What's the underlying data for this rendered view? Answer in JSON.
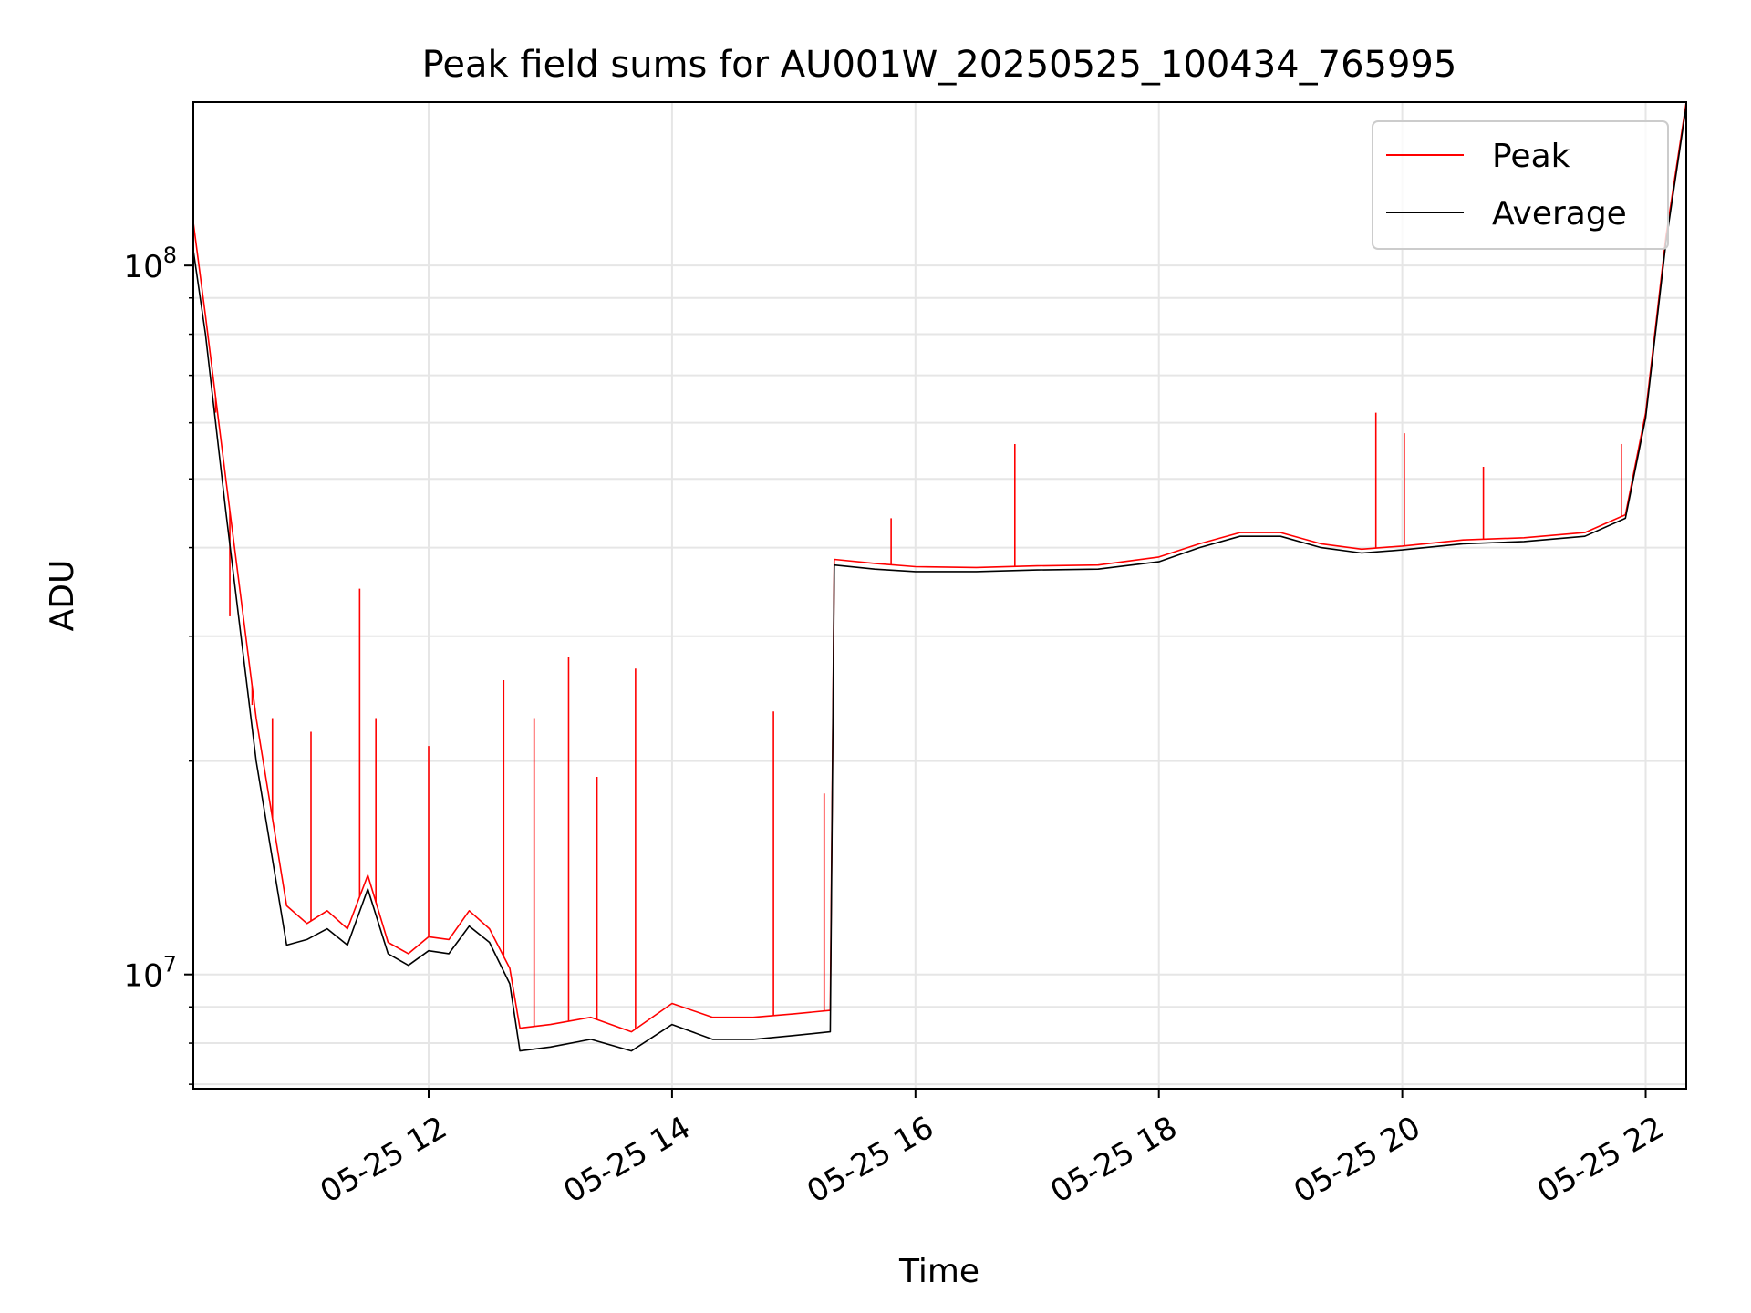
{
  "chart_data": {
    "type": "line",
    "title": "Peak field sums for AU001W_20250525_100434_765995",
    "xlabel": "Time",
    "ylabel": "ADU",
    "x_scale": "time",
    "y_scale": "log",
    "xlim": [
      "2025-05-25 10:04",
      "2025-05-25 22:20"
    ],
    "ylim": [
      6900000,
      170000000
    ],
    "x_ticks": [
      {
        "value": "2025-05-25 12:00",
        "label": "05-25 12"
      },
      {
        "value": "2025-05-25 14:00",
        "label": "05-25 14"
      },
      {
        "value": "2025-05-25 16:00",
        "label": "05-25 16"
      },
      {
        "value": "2025-05-25 18:00",
        "label": "05-25 18"
      },
      {
        "value": "2025-05-25 20:00",
        "label": "05-25 20"
      },
      {
        "value": "2025-05-25 22:00",
        "label": "05-25 22"
      }
    ],
    "y_ticks": [
      {
        "value": 10000000,
        "base": "10",
        "exp": "7"
      },
      {
        "value": 100000000,
        "base": "10",
        "exp": "8"
      }
    ],
    "grid": true,
    "legend_position": "top-right",
    "series": [
      {
        "name": "Peak",
        "color": "#ff0000",
        "x": [
          "2025-05-25 10:04",
          "2025-05-25 10:10",
          "2025-05-25 10:20",
          "2025-05-25 10:35",
          "2025-05-25 10:50",
          "2025-05-25 11:00",
          "2025-05-25 11:10",
          "2025-05-25 11:20",
          "2025-05-25 11:30",
          "2025-05-25 11:40",
          "2025-05-25 11:50",
          "2025-05-25 12:00",
          "2025-05-25 12:10",
          "2025-05-25 12:20",
          "2025-05-25 12:30",
          "2025-05-25 12:40",
          "2025-05-25 12:45",
          "2025-05-25 13:00",
          "2025-05-25 13:20",
          "2025-05-25 13:40",
          "2025-05-25 14:00",
          "2025-05-25 14:20",
          "2025-05-25 14:40",
          "2025-05-25 15:00",
          "2025-05-25 15:18",
          "2025-05-25 15:20",
          "2025-05-25 15:40",
          "2025-05-25 16:00",
          "2025-05-25 16:30",
          "2025-05-25 17:00",
          "2025-05-25 17:30",
          "2025-05-25 18:00",
          "2025-05-25 18:20",
          "2025-05-25 18:40",
          "2025-05-25 19:00",
          "2025-05-25 19:20",
          "2025-05-25 19:40",
          "2025-05-25 20:00",
          "2025-05-25 20:30",
          "2025-05-25 21:00",
          "2025-05-25 21:30",
          "2025-05-25 21:50",
          "2025-05-25 22:00",
          "2025-05-25 22:10",
          "2025-05-25 22:20"
        ],
        "y": [
          115000000,
          85000000,
          50000000,
          23000000,
          12500000,
          11800000,
          12300000,
          11600000,
          13800000,
          11100000,
          10700000,
          11300000,
          11200000,
          12300000,
          11600000,
          10200000,
          8400000,
          8500000,
          8700000,
          8300000,
          9100000,
          8700000,
          8700000,
          8800000,
          8900000,
          38500000,
          38000000,
          37600000,
          37500000,
          37700000,
          37800000,
          38800000,
          40500000,
          42000000,
          42000000,
          40500000,
          39800000,
          40200000,
          41000000,
          41300000,
          42000000,
          44500000,
          62000000,
          110000000,
          170000000
        ],
        "spikes": [
          {
            "x": "2025-05-25 10:15",
            "y": 62000000
          },
          {
            "x": "2025-05-25 10:22",
            "y": 32000000
          },
          {
            "x": "2025-05-25 10:33",
            "y": 24000000
          },
          {
            "x": "2025-05-25 10:43",
            "y": 23000000
          },
          {
            "x": "2025-05-25 11:02",
            "y": 22000000
          },
          {
            "x": "2025-05-25 11:26",
            "y": 35000000
          },
          {
            "x": "2025-05-25 11:34",
            "y": 23000000
          },
          {
            "x": "2025-05-25 12:00",
            "y": 21000000
          },
          {
            "x": "2025-05-25 12:37",
            "y": 26000000
          },
          {
            "x": "2025-05-25 12:52",
            "y": 23000000
          },
          {
            "x": "2025-05-25 13:09",
            "y": 28000000
          },
          {
            "x": "2025-05-25 13:23",
            "y": 19000000
          },
          {
            "x": "2025-05-25 13:42",
            "y": 27000000
          },
          {
            "x": "2025-05-25 14:50",
            "y": 23500000
          },
          {
            "x": "2025-05-25 15:15",
            "y": 18000000
          },
          {
            "x": "2025-05-25 15:48",
            "y": 44000000
          },
          {
            "x": "2025-05-25 16:49",
            "y": 56000000
          },
          {
            "x": "2025-05-25 19:47",
            "y": 62000000
          },
          {
            "x": "2025-05-25 20:01",
            "y": 58000000
          },
          {
            "x": "2025-05-25 20:40",
            "y": 52000000
          },
          {
            "x": "2025-05-25 21:48",
            "y": 56000000
          }
        ]
      },
      {
        "name": "Average",
        "color": "#000000",
        "x": [
          "2025-05-25 10:04",
          "2025-05-25 10:10",
          "2025-05-25 10:20",
          "2025-05-25 10:35",
          "2025-05-25 10:50",
          "2025-05-25 11:00",
          "2025-05-25 11:10",
          "2025-05-25 11:20",
          "2025-05-25 11:30",
          "2025-05-25 11:40",
          "2025-05-25 11:50",
          "2025-05-25 12:00",
          "2025-05-25 12:10",
          "2025-05-25 12:20",
          "2025-05-25 12:30",
          "2025-05-25 12:40",
          "2025-05-25 12:45",
          "2025-05-25 13:00",
          "2025-05-25 13:20",
          "2025-05-25 13:40",
          "2025-05-25 14:00",
          "2025-05-25 14:20",
          "2025-05-25 14:40",
          "2025-05-25 15:00",
          "2025-05-25 15:18",
          "2025-05-25 15:20",
          "2025-05-25 15:40",
          "2025-05-25 16:00",
          "2025-05-25 16:30",
          "2025-05-25 17:00",
          "2025-05-25 17:30",
          "2025-05-25 18:00",
          "2025-05-25 18:20",
          "2025-05-25 18:40",
          "2025-05-25 19:00",
          "2025-05-25 19:20",
          "2025-05-25 19:40",
          "2025-05-25 20:00",
          "2025-05-25 20:30",
          "2025-05-25 21:00",
          "2025-05-25 21:30",
          "2025-05-25 21:50",
          "2025-05-25 22:00",
          "2025-05-25 22:10",
          "2025-05-25 22:20"
        ],
        "y": [
          105000000,
          80000000,
          45000000,
          20000000,
          11000000,
          11200000,
          11600000,
          11000000,
          13200000,
          10700000,
          10300000,
          10800000,
          10700000,
          11700000,
          11100000,
          9700000,
          7800000,
          7900000,
          8100000,
          7800000,
          8500000,
          8100000,
          8100000,
          8200000,
          8300000,
          37800000,
          37300000,
          37000000,
          37000000,
          37200000,
          37300000,
          38200000,
          40000000,
          41500000,
          41500000,
          40000000,
          39300000,
          39700000,
          40500000,
          40800000,
          41500000,
          44000000,
          61000000,
          108000000,
          168000000
        ]
      }
    ]
  }
}
